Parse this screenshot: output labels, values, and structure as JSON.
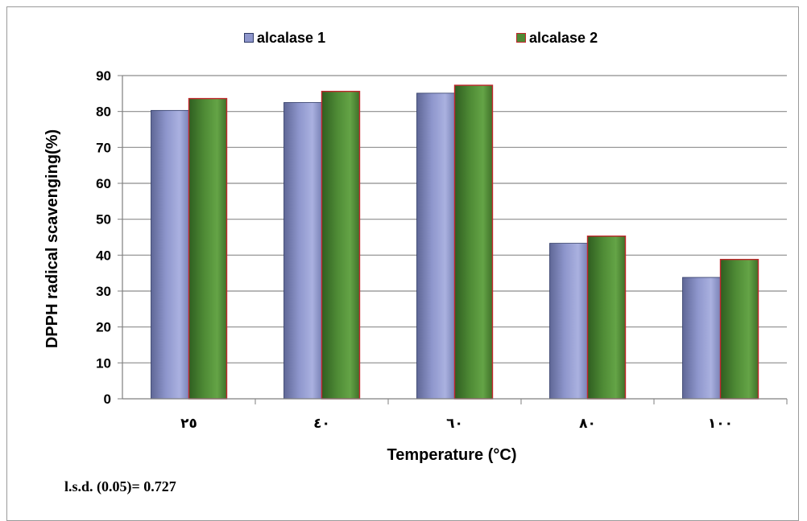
{
  "chart_data": {
    "type": "bar",
    "categories": [
      "٢٥",
      "٤٠",
      "٦٠",
      "٨٠",
      "١٠٠"
    ],
    "series": [
      {
        "name": "alcalase 1",
        "values": [
          80.3,
          82.5,
          85.1,
          43.3,
          33.8
        ],
        "color": "#8e96cc",
        "edge": "#2f3a66"
      },
      {
        "name": "alcalase 2",
        "values": [
          83.6,
          85.6,
          87.3,
          45.3,
          38.8
        ],
        "color": "#4e8a35",
        "edge": "#c0262c"
      }
    ],
    "xlabel": "Temperature (°C)",
    "ylabel": "DPPH radical scavenging(%)",
    "ylim": [
      0,
      90
    ],
    "yticks": [
      0,
      10,
      20,
      30,
      40,
      50,
      60,
      70,
      80,
      90
    ],
    "grid": true,
    "legend": "top"
  },
  "footnote": "l.s.d. (0.05)= 0.727"
}
